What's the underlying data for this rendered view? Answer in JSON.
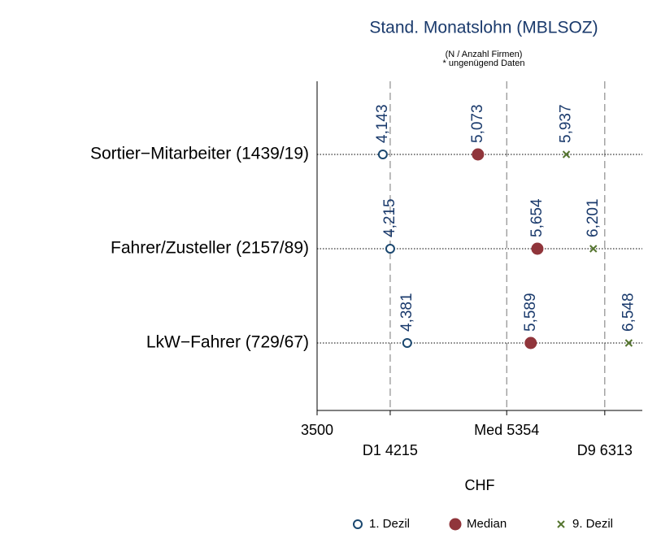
{
  "chart_data": {
    "type": "dot",
    "title": "Stand. Monatslohn (MBLSOZ)",
    "subtitle": [
      "(N / Anzahl Firmen)",
      "* ungenügend Daten"
    ],
    "xlabel": "CHF",
    "categories": [
      "Sortier−Mitarbeiter (1439/19)",
      "Fahrer/Zusteller (2157/89)",
      "LkW−Fahrer (729/67)"
    ],
    "series": [
      {
        "name": "1. Dezil",
        "color": "#1a476f",
        "marker": "hollow-circle",
        "values": [
          4143,
          4215,
          4381
        ],
        "value_labels": [
          "4,143",
          "4,215",
          "4,381"
        ]
      },
      {
        "name": "Median",
        "color": "#90353b",
        "marker": "filled-circle",
        "values": [
          5073,
          5654,
          5589
        ],
        "value_labels": [
          "5,073",
          "5,654",
          "5,589"
        ]
      },
      {
        "name": "9. Dezil",
        "color": "#55752f",
        "marker": "x",
        "values": [
          5937,
          6201,
          6548
        ],
        "value_labels": [
          "5,937",
          "6,201",
          "6,548"
        ]
      }
    ],
    "xlim": [
      3500,
      6680
    ],
    "xticks": [
      3500,
      {
        "value": 4215,
        "label": "D1 4215"
      },
      {
        "value": 5354,
        "label": "Med 5354"
      },
      {
        "value": 6313,
        "label": "D9 6313"
      }
    ],
    "legend": "bottom"
  }
}
